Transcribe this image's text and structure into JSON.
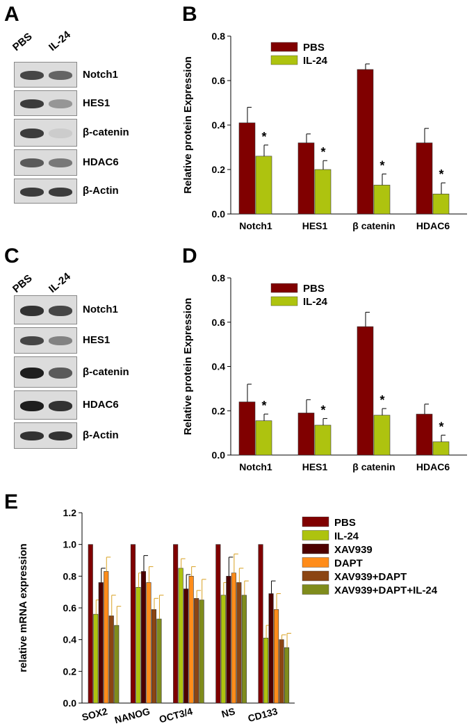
{
  "panel_letters": {
    "A": "A",
    "B": "B",
    "C": "C",
    "D": "D",
    "E": "E"
  },
  "blot_A": {
    "lanes": [
      "PBS",
      "IL-24"
    ],
    "proteins": [
      "Notch1",
      "HES1",
      "β-catenin",
      "HDAC6",
      "β-Actin"
    ],
    "band_intensity": [
      [
        0.75,
        0.6
      ],
      [
        0.8,
        0.35
      ],
      [
        0.8,
        0.08
      ],
      [
        0.65,
        0.5
      ],
      [
        0.8,
        0.8
      ]
    ]
  },
  "blot_C": {
    "lanes": [
      "PBS",
      "IL-24"
    ],
    "proteins": [
      "Notch1",
      "HES1",
      "β-catenin",
      "HDAC6",
      "β-Actin"
    ],
    "band_intensity": [
      [
        0.85,
        0.75
      ],
      [
        0.75,
        0.45
      ],
      [
        0.95,
        0.65
      ],
      [
        0.95,
        0.85
      ],
      [
        0.85,
        0.85
      ]
    ]
  },
  "colors": {
    "pbs": "#800000",
    "il24": "#aec30f",
    "xav939": "#4d0000",
    "dapt": "#ff8c1a",
    "xav_dapt": "#8b4513",
    "xav_dapt_il24": "#7f8c1c"
  },
  "chart_data": [
    {
      "type": "bar",
      "panel": "B",
      "categories": [
        "Notch1",
        "HES1",
        "β catenin",
        "HDAC6"
      ],
      "series": [
        {
          "name": "PBS",
          "values": [
            0.41,
            0.32,
            0.65,
            0.32
          ],
          "errors": [
            0.07,
            0.04,
            0.025,
            0.065
          ]
        },
        {
          "name": "IL-24",
          "values": [
            0.26,
            0.2,
            0.13,
            0.09
          ],
          "errors": [
            0.05,
            0.04,
            0.05,
            0.05
          ]
        }
      ],
      "significance": [
        "*",
        "*",
        "*",
        "*"
      ],
      "ylabel": "Relative protein Expression",
      "ylim": [
        0,
        0.8
      ],
      "yticks": [
        "0.0",
        "0.2",
        "0.4",
        "0.6",
        "0.8"
      ],
      "legend": "top-center"
    },
    {
      "type": "bar",
      "panel": "D",
      "categories": [
        "Notch1",
        "HES1",
        "β catenin",
        "HDAC6"
      ],
      "series": [
        {
          "name": "PBS",
          "values": [
            0.24,
            0.19,
            0.58,
            0.185
          ],
          "errors": [
            0.08,
            0.06,
            0.065,
            0.045
          ]
        },
        {
          "name": "IL-24",
          "values": [
            0.155,
            0.135,
            0.18,
            0.06
          ],
          "errors": [
            0.03,
            0.03,
            0.03,
            0.03
          ]
        }
      ],
      "significance": [
        "*",
        "*",
        "*",
        "*"
      ],
      "ylabel": "Relative protein Expression",
      "ylim": [
        0,
        0.8
      ],
      "yticks": [
        "0.0",
        "0.2",
        "0.4",
        "0.6",
        "0.8"
      ],
      "legend": "top-center"
    },
    {
      "type": "bar",
      "panel": "E",
      "categories": [
        "SOX2",
        "NANOG",
        "OCT3/4",
        "NS",
        "CD133"
      ],
      "series": [
        {
          "name": "PBS",
          "values": [
            1.0,
            1.0,
            1.0,
            1.0,
            1.0
          ],
          "errors": [
            0,
            0,
            0,
            0,
            0
          ]
        },
        {
          "name": "IL-24",
          "values": [
            0.56,
            0.73,
            0.85,
            0.68,
            0.41
          ],
          "errors": [
            0.09,
            0.09,
            0.06,
            0.08,
            0.08
          ]
        },
        {
          "name": "XAV939",
          "values": [
            0.76,
            0.83,
            0.72,
            0.8,
            0.69
          ],
          "errors": [
            0.09,
            0.1,
            0.09,
            0.12,
            0.08
          ]
        },
        {
          "name": "DAPT",
          "values": [
            0.83,
            0.76,
            0.8,
            0.82,
            0.59
          ],
          "errors": [
            0.09,
            0.1,
            0.06,
            0.12,
            0.1
          ]
        },
        {
          "name": "XAV939+DAPT",
          "values": [
            0.55,
            0.59,
            0.66,
            0.76,
            0.4
          ],
          "errors": [
            0.13,
            0.07,
            0.05,
            0.09,
            0.03
          ]
        },
        {
          "name": "XAV939+DAPT+IL-24",
          "values": [
            0.49,
            0.53,
            0.65,
            0.68,
            0.35
          ],
          "errors": [
            0.12,
            0.15,
            0.13,
            0.09,
            0.09
          ]
        }
      ],
      "ylabel": "relative mRNA expression",
      "ylim": [
        0,
        1.2
      ],
      "yticks": [
        "0.0",
        "0.2",
        "0.4",
        "0.6",
        "0.8",
        "1.0",
        "1.2"
      ],
      "legend": "right"
    }
  ]
}
